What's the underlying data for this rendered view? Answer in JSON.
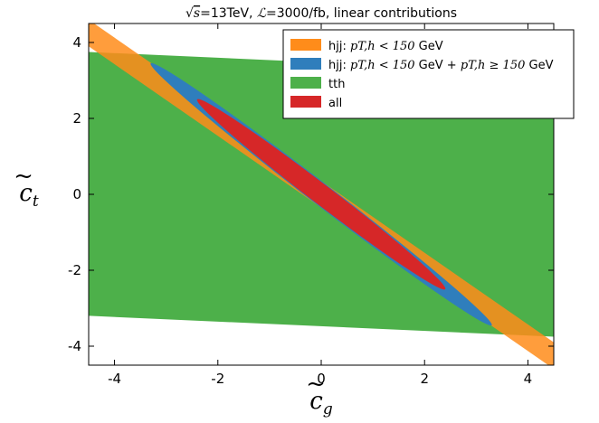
{
  "chart_data": {
    "type": "area",
    "title": "√s=13TeV, ℒ=3000/fb, linear contributions",
    "xlabel": "c̃g",
    "ylabel": "c̃t",
    "xlim": [
      -4.5,
      4.5
    ],
    "ylim": [
      -4.5,
      4.5
    ],
    "xticks": [
      -4,
      -2,
      0,
      2,
      4
    ],
    "yticks": [
      -4,
      -2,
      0,
      2,
      4
    ],
    "x_tick_labels": [
      "-4",
      "-2",
      "0",
      "2",
      "4"
    ],
    "y_tick_labels": [
      "-4",
      "-2",
      "0",
      "2",
      "4"
    ],
    "grid": false,
    "legend_position": "top-right",
    "series": [
      {
        "name": "hjj: pT,h < 150 GeV",
        "color": "#ff8c1a",
        "shape": "band",
        "points": [
          [
            -4.5,
            4.6
          ],
          [
            4.5,
            -3.9
          ],
          [
            4.5,
            -4.6
          ],
          [
            -4.5,
            3.9
          ]
        ]
      },
      {
        "name": "hjj: pT,h < 150 GeV + pT,h ≥ 150 GeV",
        "color": "#2f7ebc",
        "shape": "ellipse",
        "center": [
          0,
          0
        ],
        "endpoints": [
          [
            -3.3,
            3.45
          ],
          [
            3.3,
            -3.45
          ]
        ],
        "half_width_perpendicular": 0.13
      },
      {
        "name": "tth",
        "color": "#4db04a",
        "shape": "band",
        "points": [
          [
            -4.5,
            3.75
          ],
          [
            4.5,
            3.2
          ],
          [
            4.5,
            -3.75
          ],
          [
            -4.5,
            -3.2
          ]
        ]
      },
      {
        "name": "all",
        "color": "#d62728",
        "shape": "ellipse",
        "center": [
          0,
          0
        ],
        "endpoints": [
          [
            -2.4,
            2.5
          ],
          [
            2.4,
            -2.5
          ]
        ],
        "half_width_perpendicular": 0.12
      }
    ],
    "legend": [
      {
        "label": "hjj: ",
        "math": "pT,h < 150",
        "suffix": " GeV",
        "color": "#ff8c1a"
      },
      {
        "label": "hjj: ",
        "math": "pT,h < 150",
        "suffix": " GeV + ",
        "math2": "pT,h ≥ 150",
        "suffix2": " GeV",
        "color": "#2f7ebc"
      },
      {
        "label": "tth",
        "color": "#4db04a"
      },
      {
        "label": "all",
        "color": "#d62728"
      }
    ]
  }
}
